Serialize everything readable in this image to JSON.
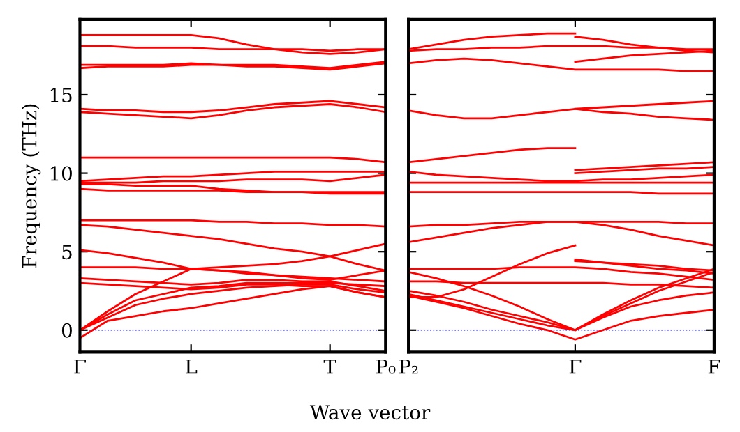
{
  "chart_data": [
    {
      "type": "line",
      "ylabel": "Frequency (THz)",
      "xlabel": "Wave vector",
      "ylim": [
        -1.4,
        19.8
      ],
      "categories": [
        "Γ",
        null,
        null,
        null,
        "L",
        null,
        null,
        null,
        null,
        "T",
        null,
        "P₀"
      ],
      "yticks": [
        0,
        5,
        10,
        15
      ],
      "ref_lines": [
        {
          "axis": "y",
          "value": 0,
          "color": "#0000ff",
          "line_style": "dotted"
        }
      ],
      "series": [
        {
          "color": "#ff0000",
          "values": [
            18.8,
            18.8,
            18.8,
            18.8,
            18.8,
            18.6,
            18.2,
            17.9,
            17.7,
            17.6,
            17.7,
            17.9
          ]
        },
        {
          "color": "#ff0000",
          "values": [
            18.1,
            18.1,
            18.0,
            18.0,
            18.0,
            17.9,
            17.9,
            17.9,
            17.9,
            17.8,
            17.9,
            17.9
          ]
        },
        {
          "color": "#ff0000",
          "values": [
            16.7,
            16.8,
            16.8,
            16.8,
            16.9,
            16.9,
            16.8,
            16.8,
            16.7,
            16.6,
            16.8,
            17.0
          ]
        },
        {
          "color": "#ff0000",
          "values": [
            16.9,
            16.9,
            16.9,
            16.9,
            17.0,
            16.9,
            16.9,
            16.9,
            16.8,
            16.7,
            16.9,
            17.1
          ]
        },
        {
          "color": "#ff0000",
          "values": [
            14.1,
            14.0,
            14.0,
            13.9,
            13.9,
            14.0,
            14.2,
            14.4,
            14.5,
            14.6,
            14.4,
            14.2
          ]
        },
        {
          "color": "#ff0000",
          "values": [
            13.9,
            13.8,
            13.7,
            13.6,
            13.5,
            13.7,
            14.0,
            14.2,
            14.3,
            14.4,
            14.2,
            13.9
          ]
        },
        {
          "color": "#ff0000",
          "values": [
            11.0,
            11.0,
            11.0,
            11.0,
            11.0,
            11.0,
            11.0,
            11.0,
            11.0,
            11.0,
            10.9,
            10.7
          ]
        },
        {
          "color": "#ff0000",
          "values": [
            9.5,
            9.6,
            9.7,
            9.8,
            9.8,
            9.9,
            10.0,
            10.1,
            10.1,
            10.1,
            10.1,
            10.1
          ]
        },
        {
          "color": "#ff0000",
          "values": [
            9.4,
            9.4,
            9.4,
            9.5,
            9.5,
            9.5,
            9.6,
            9.6,
            9.6,
            9.5,
            9.7,
            9.9
          ]
        },
        {
          "color": "#ff0000",
          "values": [
            9.3,
            9.3,
            9.2,
            9.2,
            9.2,
            9.0,
            8.9,
            8.8,
            8.8,
            8.8,
            8.8,
            8.8
          ]
        },
        {
          "color": "#ff0000",
          "values": [
            9.0,
            8.9,
            8.9,
            8.9,
            8.9,
            8.9,
            8.8,
            8.8,
            8.8,
            8.7,
            8.7,
            8.7
          ]
        },
        {
          "color": "#ff0000",
          "values": [
            7.0,
            7.0,
            7.0,
            7.0,
            7.0,
            6.9,
            6.9,
            6.8,
            6.8,
            6.7,
            6.7,
            6.6
          ]
        },
        {
          "color": "#ff0000",
          "values": [
            6.7,
            6.6,
            6.4,
            6.2,
            6.0,
            5.8,
            5.5,
            5.2,
            5.0,
            4.7,
            5.1,
            5.5
          ]
        },
        {
          "color": "#ff0000",
          "values": [
            5.1,
            4.9,
            4.6,
            4.3,
            3.9,
            4.0,
            4.1,
            4.2,
            4.4,
            4.7,
            4.2,
            3.8
          ]
        },
        {
          "color": "#ff0000",
          "values": [
            4.0,
            4.0,
            4.0,
            3.9,
            3.9,
            3.8,
            3.7,
            3.5,
            3.4,
            3.3,
            3.2,
            3.1
          ]
        },
        {
          "color": "#ff0000",
          "values": [
            3.3,
            3.2,
            3.1,
            3.0,
            2.9,
            3.0,
            3.2,
            3.2,
            3.1,
            3.1,
            2.8,
            2.5
          ]
        },
        {
          "color": "#ff0000",
          "values": [
            3.0,
            2.9,
            2.8,
            2.7,
            2.6,
            2.7,
            2.9,
            2.9,
            2.8,
            2.8,
            2.4,
            2.1
          ]
        },
        {
          "color": "#ff0000",
          "values": [
            0,
            1.2,
            2.3,
            3.1,
            3.9,
            3.8,
            3.6,
            3.5,
            3.3,
            3.2,
            3.5,
            3.8
          ]
        },
        {
          "color": "#ff0000",
          "values": [
            0,
            1.0,
            1.9,
            2.3,
            2.7,
            2.8,
            3.0,
            3.0,
            3.0,
            3.0,
            2.9,
            2.8
          ]
        },
        {
          "color": "#ff0000",
          "values": [
            0,
            0.8,
            1.6,
            2.0,
            2.3,
            2.5,
            2.7,
            2.8,
            2.9,
            2.9,
            2.6,
            2.4
          ]
        },
        {
          "color": "#ff0000",
          "values": [
            -0.5,
            0.6,
            0.9,
            1.2,
            1.4,
            1.7,
            2.0,
            2.3,
            2.6,
            2.8,
            2.4,
            2.1
          ]
        }
      ]
    },
    {
      "type": "line",
      "ylim": [
        -1.4,
        19.8
      ],
      "tick_labels": "x",
      "categories": [
        "P₂",
        null,
        null,
        null,
        null,
        null,
        "Γ",
        null,
        null,
        null,
        null,
        "F"
      ],
      "yticks": [
        0,
        5,
        10,
        15
      ],
      "ref_lines": [
        {
          "axis": "y",
          "value": 0,
          "color": "#0000ff",
          "line_style": "dotted"
        }
      ],
      "series": [
        {
          "color": "#ff0000",
          "values": [
            17.9,
            18.2,
            18.5,
            18.7,
            18.8,
            18.9,
            18.9,
            null,
            null,
            null,
            null,
            null
          ]
        },
        {
          "color": "#ff0000",
          "values": [
            null,
            null,
            null,
            null,
            null,
            null,
            18.7,
            18.5,
            18.2,
            18.0,
            17.8,
            17.7
          ]
        },
        {
          "color": "#ff0000",
          "values": [
            17.8,
            17.9,
            17.9,
            18.0,
            18.0,
            18.1,
            18.1,
            18.1,
            18.0,
            18.0,
            17.9,
            17.9
          ]
        },
        {
          "color": "#ff0000",
          "values": [
            17.0,
            17.2,
            17.3,
            17.2,
            17.0,
            16.8,
            16.6,
            16.6,
            16.6,
            16.6,
            16.5,
            16.5
          ]
        },
        {
          "color": "#ff0000",
          "values": [
            null,
            null,
            null,
            null,
            null,
            null,
            17.1,
            17.3,
            17.5,
            17.6,
            17.7,
            17.8
          ]
        },
        {
          "color": "#ff0000",
          "values": [
            14.0,
            13.7,
            13.5,
            13.5,
            13.7,
            13.9,
            14.1,
            14.2,
            14.3,
            14.4,
            14.5,
            14.6
          ]
        },
        {
          "color": "#ff0000",
          "values": [
            null,
            null,
            null,
            null,
            null,
            null,
            14.1,
            13.9,
            13.8,
            13.6,
            13.5,
            13.4
          ]
        },
        {
          "color": "#ff0000",
          "values": [
            10.7,
            10.9,
            11.1,
            11.3,
            11.5,
            11.6,
            11.6,
            null,
            null,
            null,
            null,
            null
          ]
        },
        {
          "color": "#ff0000",
          "values": [
            null,
            null,
            null,
            null,
            null,
            null,
            10.2,
            10.3,
            10.4,
            10.5,
            10.6,
            10.7
          ]
        },
        {
          "color": "#ff0000",
          "values": [
            10.1,
            9.9,
            9.8,
            9.7,
            9.6,
            9.5,
            9.5,
            9.6,
            9.6,
            9.7,
            9.8,
            9.9
          ]
        },
        {
          "color": "#ff0000",
          "values": [
            null,
            null,
            null,
            null,
            null,
            null,
            10.0,
            10.1,
            10.2,
            10.3,
            10.3,
            10.4
          ]
        },
        {
          "color": "#ff0000",
          "values": [
            9.4,
            9.4,
            9.4,
            9.4,
            9.4,
            9.4,
            9.4,
            9.4,
            9.4,
            9.4,
            9.4,
            9.4
          ]
        },
        {
          "color": "#ff0000",
          "values": [
            8.8,
            8.8,
            8.8,
            8.8,
            8.8,
            8.8,
            8.8,
            8.8,
            8.8,
            8.7,
            8.7,
            8.7
          ]
        },
        {
          "color": "#ff0000",
          "values": [
            6.6,
            6.7,
            6.7,
            6.8,
            6.9,
            6.9,
            6.9,
            6.9,
            6.9,
            6.9,
            6.8,
            6.8
          ]
        },
        {
          "color": "#ff0000",
          "values": [
            5.6,
            5.9,
            6.2,
            6.5,
            6.7,
            6.9,
            6.9,
            6.7,
            6.4,
            6.0,
            5.7,
            5.4
          ]
        },
        {
          "color": "#ff0000",
          "values": [
            2.1,
            2.1,
            2.6,
            3.4,
            4.2,
            4.9,
            5.4,
            null,
            null,
            null,
            null,
            null
          ]
        },
        {
          "color": "#ff0000",
          "values": [
            3.9,
            3.9,
            3.9,
            3.9,
            4.0,
            4.0,
            4.0,
            3.9,
            3.7,
            3.6,
            3.4,
            3.2
          ]
        },
        {
          "color": "#ff0000",
          "values": [
            3.1,
            3.1,
            3.0,
            3.0,
            3.0,
            3.0,
            3.0,
            3.0,
            2.9,
            2.9,
            2.8,
            2.7
          ]
        },
        {
          "color": "#ff0000",
          "values": [
            3.7,
            3.3,
            2.8,
            2.2,
            1.5,
            0.7,
            0,
            null,
            null,
            null,
            null,
            null
          ]
        },
        {
          "color": "#ff0000",
          "values": [
            2.5,
            2.2,
            1.8,
            1.3,
            0.9,
            0.5,
            0,
            1.0,
            1.9,
            2.7,
            3.3,
            3.9
          ]
        },
        {
          "color": "#ff0000",
          "values": [
            2.3,
            1.9,
            1.5,
            1.1,
            0.7,
            0.3,
            0,
            0.9,
            1.7,
            2.5,
            3.1,
            3.7
          ]
        },
        {
          "color": "#ff0000",
          "values": [
            2.2,
            1.8,
            1.4,
            0.9,
            0.4,
            0.0,
            -0.6,
            0.0,
            0.6,
            0.9,
            1.1,
            1.3
          ]
        },
        {
          "color": "#ff0000",
          "values": [
            null,
            null,
            null,
            null,
            null,
            null,
            4.5,
            4.3,
            4.1,
            3.9,
            3.8,
            3.6
          ]
        },
        {
          "color": "#ff0000",
          "values": [
            null,
            null,
            null,
            null,
            null,
            null,
            4.4,
            4.3,
            4.2,
            4.1,
            3.9,
            3.8
          ]
        },
        {
          "color": "#ff0000",
          "values": [
            null,
            null,
            null,
            null,
            null,
            null,
            0,
            0.8,
            1.5,
            1.9,
            2.2,
            2.4
          ]
        }
      ]
    }
  ]
}
